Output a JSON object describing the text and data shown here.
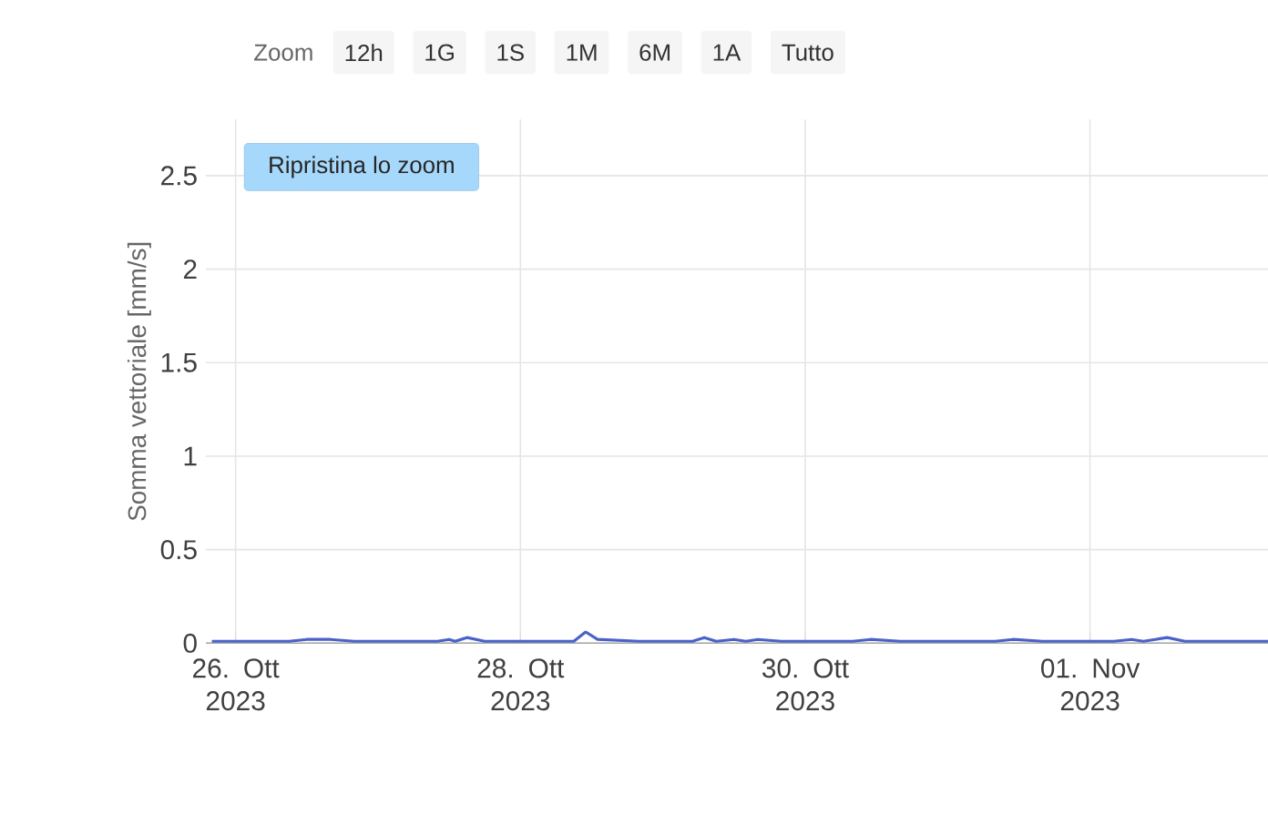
{
  "chart_data": {
    "type": "line",
    "ylabel": "Somma vettoriale [mm/s]",
    "annotations": [
      "Zoom",
      "12h",
      "1G",
      "1S",
      "1M",
      "6M",
      "1A",
      "Tutto",
      "Ripristina lo zoom"
    ],
    "series": [
      {
        "color": "#4a62c8",
        "x": [
          "2023-10-25T20:00",
          "2023-10-26T06:00",
          "2023-10-26T09:00",
          "2023-10-26T12:00",
          "2023-10-26T16:00",
          "2023-10-26T20:00",
          "2023-10-27T00:00",
          "2023-10-27T06:00",
          "2023-10-27T10:00",
          "2023-10-27T12:00",
          "2023-10-27T13:00",
          "2023-10-27T15:00",
          "2023-10-27T18:00",
          "2023-10-28T00:00",
          "2023-10-28T06:00",
          "2023-10-28T09:00",
          "2023-10-28T11:00",
          "2023-10-28T13:00",
          "2023-10-28T20:00",
          "2023-10-29T00:00",
          "2023-10-29T05:00",
          "2023-10-29T07:00",
          "2023-10-29T09:00",
          "2023-10-29T12:00",
          "2023-10-29T14:00",
          "2023-10-29T16:00",
          "2023-10-29T20:00",
          "2023-10-30T03:00",
          "2023-10-30T08:00",
          "2023-10-30T11:00",
          "2023-10-30T16:00",
          "2023-10-30T22:00",
          "2023-10-31T04:00",
          "2023-10-31T08:00",
          "2023-10-31T11:00",
          "2023-10-31T16:00",
          "2023-10-31T22:00",
          "2023-11-01T04:00",
          "2023-11-01T07:00",
          "2023-11-01T09:00",
          "2023-11-01T11:00",
          "2023-11-01T13:00",
          "2023-11-01T16:00",
          "2023-11-01T22:00",
          "2023-11-02T06:00"
        ],
        "values": [
          0.01,
          0.01,
          0.01,
          0.02,
          0.02,
          0.01,
          0.01,
          0.01,
          0.01,
          0.02,
          0.01,
          0.03,
          0.01,
          0.01,
          0.01,
          0.01,
          0.06,
          0.02,
          0.01,
          0.01,
          0.01,
          0.03,
          0.01,
          0.02,
          0.01,
          0.02,
          0.01,
          0.01,
          0.01,
          0.02,
          0.01,
          0.01,
          0.01,
          0.01,
          0.02,
          0.01,
          0.01,
          0.01,
          0.02,
          0.01,
          0.02,
          0.03,
          0.01,
          0.01,
          0.01
        ]
      }
    ],
    "xlim": [
      "2023-10-25T19:00",
      "2023-11-02T06:00"
    ],
    "xticks": [
      {
        "value": "2023-10-26",
        "label": "26. Ott 2023"
      },
      {
        "value": "2023-10-28",
        "label": "28. Ott 2023"
      },
      {
        "value": "2023-10-30",
        "label": "30. Ott 2023"
      },
      {
        "value": "2023-11-01",
        "label": "01. Nov 2023"
      }
    ],
    "ylim": [
      0,
      2.8
    ],
    "yticks": [
      0,
      0.5,
      1,
      1.5,
      2,
      2.5
    ],
    "grid": true,
    "marker": "none",
    "line_style": "solid"
  }
}
